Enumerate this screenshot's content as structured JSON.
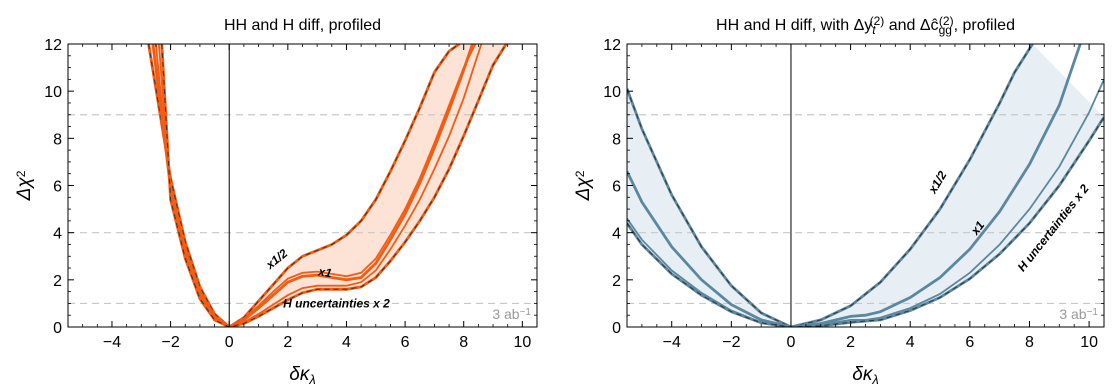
{
  "chart_data": [
    {
      "type": "line",
      "title": "HH and H diff, profiled",
      "xlabel": "δκ_λ",
      "ylabel": "Δχ²",
      "xlim": [
        -5.5,
        10.5
      ],
      "ylim": [
        0,
        12
      ],
      "xticks": [
        -4,
        -2,
        0,
        2,
        4,
        6,
        8,
        10
      ],
      "yticks": [
        0,
        2,
        4,
        6,
        8,
        10,
        12
      ],
      "hlines": [
        1,
        4,
        9
      ],
      "luminosity_label": "3 ab⁻¹",
      "color": "#f25c14",
      "fill_color": "#fde3d6",
      "band_label": "H uncertainties x 2",
      "series": [
        {
          "name": "x1/2",
          "style": "dashed",
          "x": [
            -2.75,
            -2,
            -1.5,
            -1,
            -0.5,
            0,
            0.5,
            1,
            1.5,
            2,
            2.5,
            3,
            3.5,
            4,
            4.5,
            5,
            5.5,
            6,
            6.5,
            7,
            7.5,
            7.85
          ],
          "y": [
            12,
            6.3,
            3.6,
            1.7,
            0.55,
            0,
            0.4,
            1.1,
            1.8,
            2.5,
            3.0,
            3.25,
            3.5,
            3.9,
            4.5,
            5.4,
            6.6,
            7.9,
            9.3,
            10.8,
            11.7,
            12
          ]
        },
        {
          "name": "x1",
          "style": "solid",
          "x": [
            -2.6,
            -2,
            -1.5,
            -1,
            -0.5,
            0,
            0.5,
            1,
            1.5,
            2,
            2.5,
            3,
            3.5,
            4,
            4.5,
            5,
            5.5,
            6,
            6.5,
            7,
            7.5,
            8,
            8.3
          ],
          "y": [
            12,
            5.9,
            3.3,
            1.5,
            0.45,
            0,
            0.3,
            0.8,
            1.35,
            1.9,
            2.15,
            2.2,
            2.1,
            2.0,
            2.1,
            2.7,
            3.7,
            4.8,
            6.1,
            7.6,
            9.2,
            10.9,
            12
          ]
        },
        {
          "name": "x1 (upper edge)",
          "style": "solid",
          "x": [
            -2.5,
            -2,
            -1.5,
            -1,
            -0.5,
            0,
            0.5,
            1,
            1.5,
            2,
            2.5,
            3,
            3.5,
            4,
            4.5,
            5,
            5.5,
            6,
            6.5,
            7,
            7.5,
            8,
            8.4
          ],
          "y": [
            12,
            5.6,
            3.1,
            1.4,
            0.4,
            0,
            0.35,
            0.9,
            1.5,
            2.05,
            2.3,
            2.35,
            2.25,
            2.15,
            2.3,
            2.9,
            3.9,
            5.0,
            6.3,
            7.8,
            9.4,
            11.0,
            12
          ]
        },
        {
          "name": "x1 (lower edge)",
          "style": "solid",
          "x": [
            -2.4,
            -2,
            -1.5,
            -1,
            -0.5,
            0,
            0.5,
            1,
            1.5,
            2,
            2.5,
            3,
            3.5,
            4,
            4.5,
            5,
            5.5,
            6,
            6.5,
            7,
            7.5,
            8,
            8.6
          ],
          "y": [
            12,
            5.5,
            3.0,
            1.3,
            0.35,
            0,
            0.2,
            0.55,
            0.95,
            1.35,
            1.65,
            1.75,
            1.75,
            1.75,
            1.9,
            2.4,
            3.3,
            4.3,
            5.4,
            6.7,
            8.1,
            9.7,
            12
          ]
        },
        {
          "name": "H uncertainties x 2",
          "style": "dashed",
          "x": [
            -2.3,
            -2,
            -1.5,
            -1,
            -0.5,
            0,
            0.5,
            1,
            1.5,
            2,
            2.5,
            3,
            3.5,
            4,
            4.5,
            5,
            5.5,
            6,
            6.5,
            7,
            7.5,
            8,
            8.5,
            9,
            9.45
          ],
          "y": [
            12,
            5.4,
            2.9,
            1.2,
            0.3,
            0,
            0.15,
            0.45,
            0.8,
            1.15,
            1.45,
            1.6,
            1.6,
            1.6,
            1.7,
            2.1,
            2.8,
            3.6,
            4.5,
            5.5,
            6.7,
            8.1,
            9.6,
            11.1,
            12
          ]
        }
      ]
    },
    {
      "type": "line",
      "title": "HH and H diff, with Δy_t^(2) and Δĉ_gg^(2), profiled",
      "title_parts": {
        "before": "HH and H diff, with Δy",
        "sub1": "t",
        "sup1": "(2)",
        "middle": " and Δĉ",
        "sub2": "gg",
        "sup2": "(2)",
        "after": ", profiled"
      },
      "xlabel": "δκ_λ",
      "ylabel": "Δχ²",
      "xlim": [
        -5.5,
        10.5
      ],
      "ylim": [
        0,
        12
      ],
      "xticks": [
        -4,
        -2,
        0,
        2,
        4,
        6,
        8,
        10
      ],
      "yticks": [
        0,
        2,
        4,
        6,
        8,
        10,
        12
      ],
      "hlines": [
        1,
        4,
        9
      ],
      "luminosity_label": "3 ab⁻¹",
      "color": "#5b87a0",
      "fill_color": "#e7eff4",
      "band_label": "H uncertainties x 2",
      "series": [
        {
          "name": "x1/2",
          "style": "dashed",
          "x": [
            -5.5,
            -5,
            -4,
            -3,
            -2,
            -1,
            0,
            1,
            2,
            3,
            4,
            5,
            6,
            7,
            7.5,
            8.1
          ],
          "y": [
            10.1,
            8.4,
            5.6,
            3.4,
            1.75,
            0.6,
            0,
            0.3,
            0.9,
            1.9,
            3.3,
            5.0,
            7.1,
            9.5,
            10.8,
            12
          ]
        },
        {
          "name": "x1",
          "style": "solid",
          "x": [
            -5.5,
            -5,
            -4,
            -3,
            -2,
            -1,
            0,
            1,
            2,
            2.5,
            3,
            4,
            5,
            6,
            7,
            8,
            9,
            9.7
          ],
          "y": [
            6.6,
            5.3,
            3.4,
            2.0,
            0.95,
            0.3,
            0,
            0.15,
            0.45,
            0.5,
            0.65,
            1.25,
            2.1,
            3.3,
            4.9,
            6.9,
            9.4,
            12
          ]
        },
        {
          "name": "x1 (lower edge)",
          "style": "solid",
          "x": [
            -5.5,
            -5,
            -4,
            -3,
            -2,
            -1,
            0,
            1,
            2,
            2.5,
            3,
            4,
            5,
            6,
            7,
            8,
            9,
            10,
            10.5
          ],
          "y": [
            4.6,
            3.7,
            2.4,
            1.45,
            0.7,
            0.2,
            0,
            0.1,
            0.3,
            0.3,
            0.4,
            0.8,
            1.4,
            2.3,
            3.5,
            5.0,
            6.8,
            9.1,
            10.5
          ]
        },
        {
          "name": "H uncertainties x 2",
          "style": "dashed",
          "x": [
            -5.5,
            -5,
            -4,
            -3,
            -2,
            -1,
            0,
            1,
            2,
            3,
            4,
            5,
            6,
            7,
            8,
            9,
            10,
            10.5
          ],
          "y": [
            4.4,
            3.5,
            2.25,
            1.35,
            0.65,
            0.18,
            0,
            0.05,
            0.2,
            0.3,
            0.7,
            1.25,
            2.05,
            3.1,
            4.4,
            6.0,
            7.9,
            8.9
          ]
        }
      ]
    }
  ]
}
